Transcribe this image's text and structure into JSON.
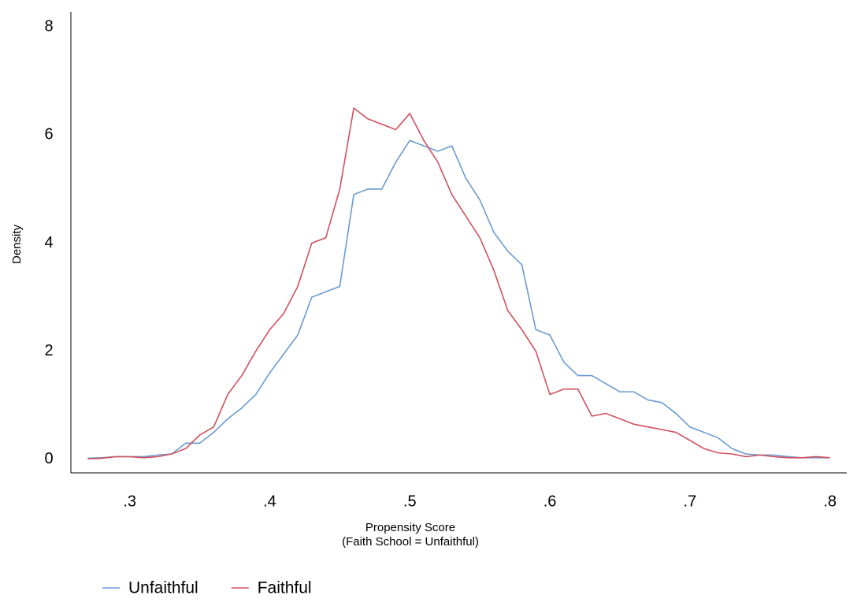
{
  "chart_data": {
    "type": "line",
    "x_label": "Propensity Score",
    "x_label_note": "(Faith School = Unfaithful)",
    "y_label": "Density",
    "x": [
      0.27,
      0.28,
      0.29,
      0.3,
      0.31,
      0.32,
      0.33,
      0.34,
      0.35,
      0.36,
      0.37,
      0.38,
      0.39,
      0.4,
      0.41,
      0.42,
      0.43,
      0.44,
      0.45,
      0.46,
      0.47,
      0.48,
      0.49,
      0.5,
      0.51,
      0.52,
      0.53,
      0.54,
      0.55,
      0.56,
      0.57,
      0.58,
      0.59,
      0.6,
      0.61,
      0.62,
      0.63,
      0.64,
      0.65,
      0.66,
      0.67,
      0.68,
      0.69,
      0.7,
      0.71,
      0.72,
      0.73,
      0.74,
      0.75,
      0.76,
      0.77,
      0.78,
      0.79,
      0.8
    ],
    "series": [
      {
        "name": "Unfaithful",
        "color": "#6a9bd1",
        "values": [
          0.02,
          0.03,
          0.05,
          0.05,
          0.05,
          0.08,
          0.1,
          0.3,
          0.3,
          0.5,
          0.75,
          0.95,
          1.2,
          1.6,
          1.95,
          2.3,
          3.0,
          3.1,
          3.2,
          4.9,
          5.0,
          5.0,
          5.5,
          5.9,
          5.8,
          5.7,
          5.8,
          5.2,
          4.8,
          4.2,
          3.85,
          3.6,
          2.4,
          2.3,
          1.8,
          1.55,
          1.55,
          1.4,
          1.25,
          1.25,
          1.1,
          1.05,
          0.85,
          0.6,
          0.5,
          0.4,
          0.2,
          0.1,
          0.08,
          0.08,
          0.05,
          0.03,
          0.03,
          0.03
        ]
      },
      {
        "name": "Faithful",
        "color": "#d0505f",
        "values": [
          0.01,
          0.02,
          0.05,
          0.05,
          0.03,
          0.05,
          0.1,
          0.2,
          0.45,
          0.6,
          1.2,
          1.55,
          2.0,
          2.4,
          2.7,
          3.2,
          4.0,
          4.1,
          5.0,
          6.5,
          6.3,
          6.2,
          6.1,
          6.4,
          5.9,
          5.5,
          4.9,
          4.5,
          4.1,
          3.5,
          2.75,
          2.4,
          2.0,
          1.2,
          1.3,
          1.3,
          0.8,
          0.85,
          0.75,
          0.65,
          0.6,
          0.55,
          0.5,
          0.35,
          0.2,
          0.12,
          0.1,
          0.05,
          0.08,
          0.05,
          0.03,
          0.03,
          0.05,
          0.03
        ]
      }
    ],
    "xlim": [
      0.258,
      0.812
    ],
    "xticks": [
      {
        "value": 0.3,
        "label": ".3"
      },
      {
        "value": 0.4,
        "label": ".4"
      },
      {
        "value": 0.5,
        "label": ".5"
      },
      {
        "value": 0.6,
        "label": ".6"
      },
      {
        "value": 0.7,
        "label": ".7"
      },
      {
        "value": 0.8,
        "label": ".8"
      }
    ],
    "ylim": [
      -0.25,
      8.28
    ],
    "yticks": [
      0,
      2,
      4,
      6,
      8
    ],
    "grid": false,
    "legend": "bottom-left"
  }
}
